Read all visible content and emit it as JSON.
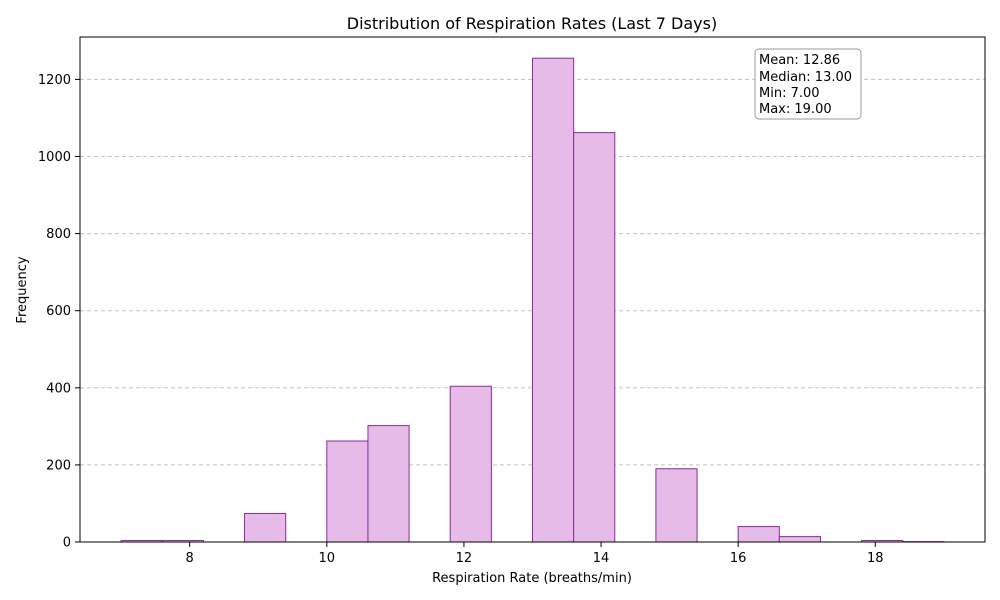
{
  "chart_data": {
    "type": "bar",
    "title": "Distribution of Respiration Rates (Last 7 Days)",
    "xlabel": "Respiration Rate (breaths/min)",
    "ylabel": "Frequency",
    "xlim": [
      6.4,
      19.6
    ],
    "ylim": [
      0,
      1310
    ],
    "xticks": [
      8,
      10,
      12,
      14,
      16,
      18
    ],
    "yticks": [
      0,
      200,
      400,
      600,
      800,
      1000,
      1200
    ],
    "grid": "y-dashed",
    "bins": [
      {
        "start": 7.0,
        "end": 7.6,
        "value": 4
      },
      {
        "start": 7.6,
        "end": 8.2,
        "value": 4
      },
      {
        "start": 8.2,
        "end": 8.8,
        "value": 0
      },
      {
        "start": 8.8,
        "end": 9.4,
        "value": 74
      },
      {
        "start": 9.4,
        "end": 10.0,
        "value": 0
      },
      {
        "start": 10.0,
        "end": 10.6,
        "value": 262
      },
      {
        "start": 10.6,
        "end": 11.2,
        "value": 302
      },
      {
        "start": 11.2,
        "end": 11.8,
        "value": 0
      },
      {
        "start": 11.8,
        "end": 12.4,
        "value": 404
      },
      {
        "start": 12.4,
        "end": 13.0,
        "value": 0
      },
      {
        "start": 13.0,
        "end": 13.6,
        "value": 1255
      },
      {
        "start": 13.6,
        "end": 14.2,
        "value": 1062
      },
      {
        "start": 14.2,
        "end": 14.8,
        "value": 0
      },
      {
        "start": 14.8,
        "end": 15.4,
        "value": 190
      },
      {
        "start": 15.4,
        "end": 16.0,
        "value": 0
      },
      {
        "start": 16.0,
        "end": 16.6,
        "value": 40
      },
      {
        "start": 16.6,
        "end": 17.2,
        "value": 14
      },
      {
        "start": 17.2,
        "end": 17.8,
        "value": 0
      },
      {
        "start": 17.8,
        "end": 18.4,
        "value": 4
      },
      {
        "start": 18.4,
        "end": 19.0,
        "value": 1
      }
    ],
    "bar_fill": "#e6bbe8",
    "bar_stroke": "#8b2b9a",
    "stats": {
      "lines": [
        "Mean: 12.86",
        "Median: 13.00",
        "Min: 7.00",
        "Max: 19.00"
      ],
      "placement": "top-right"
    }
  }
}
